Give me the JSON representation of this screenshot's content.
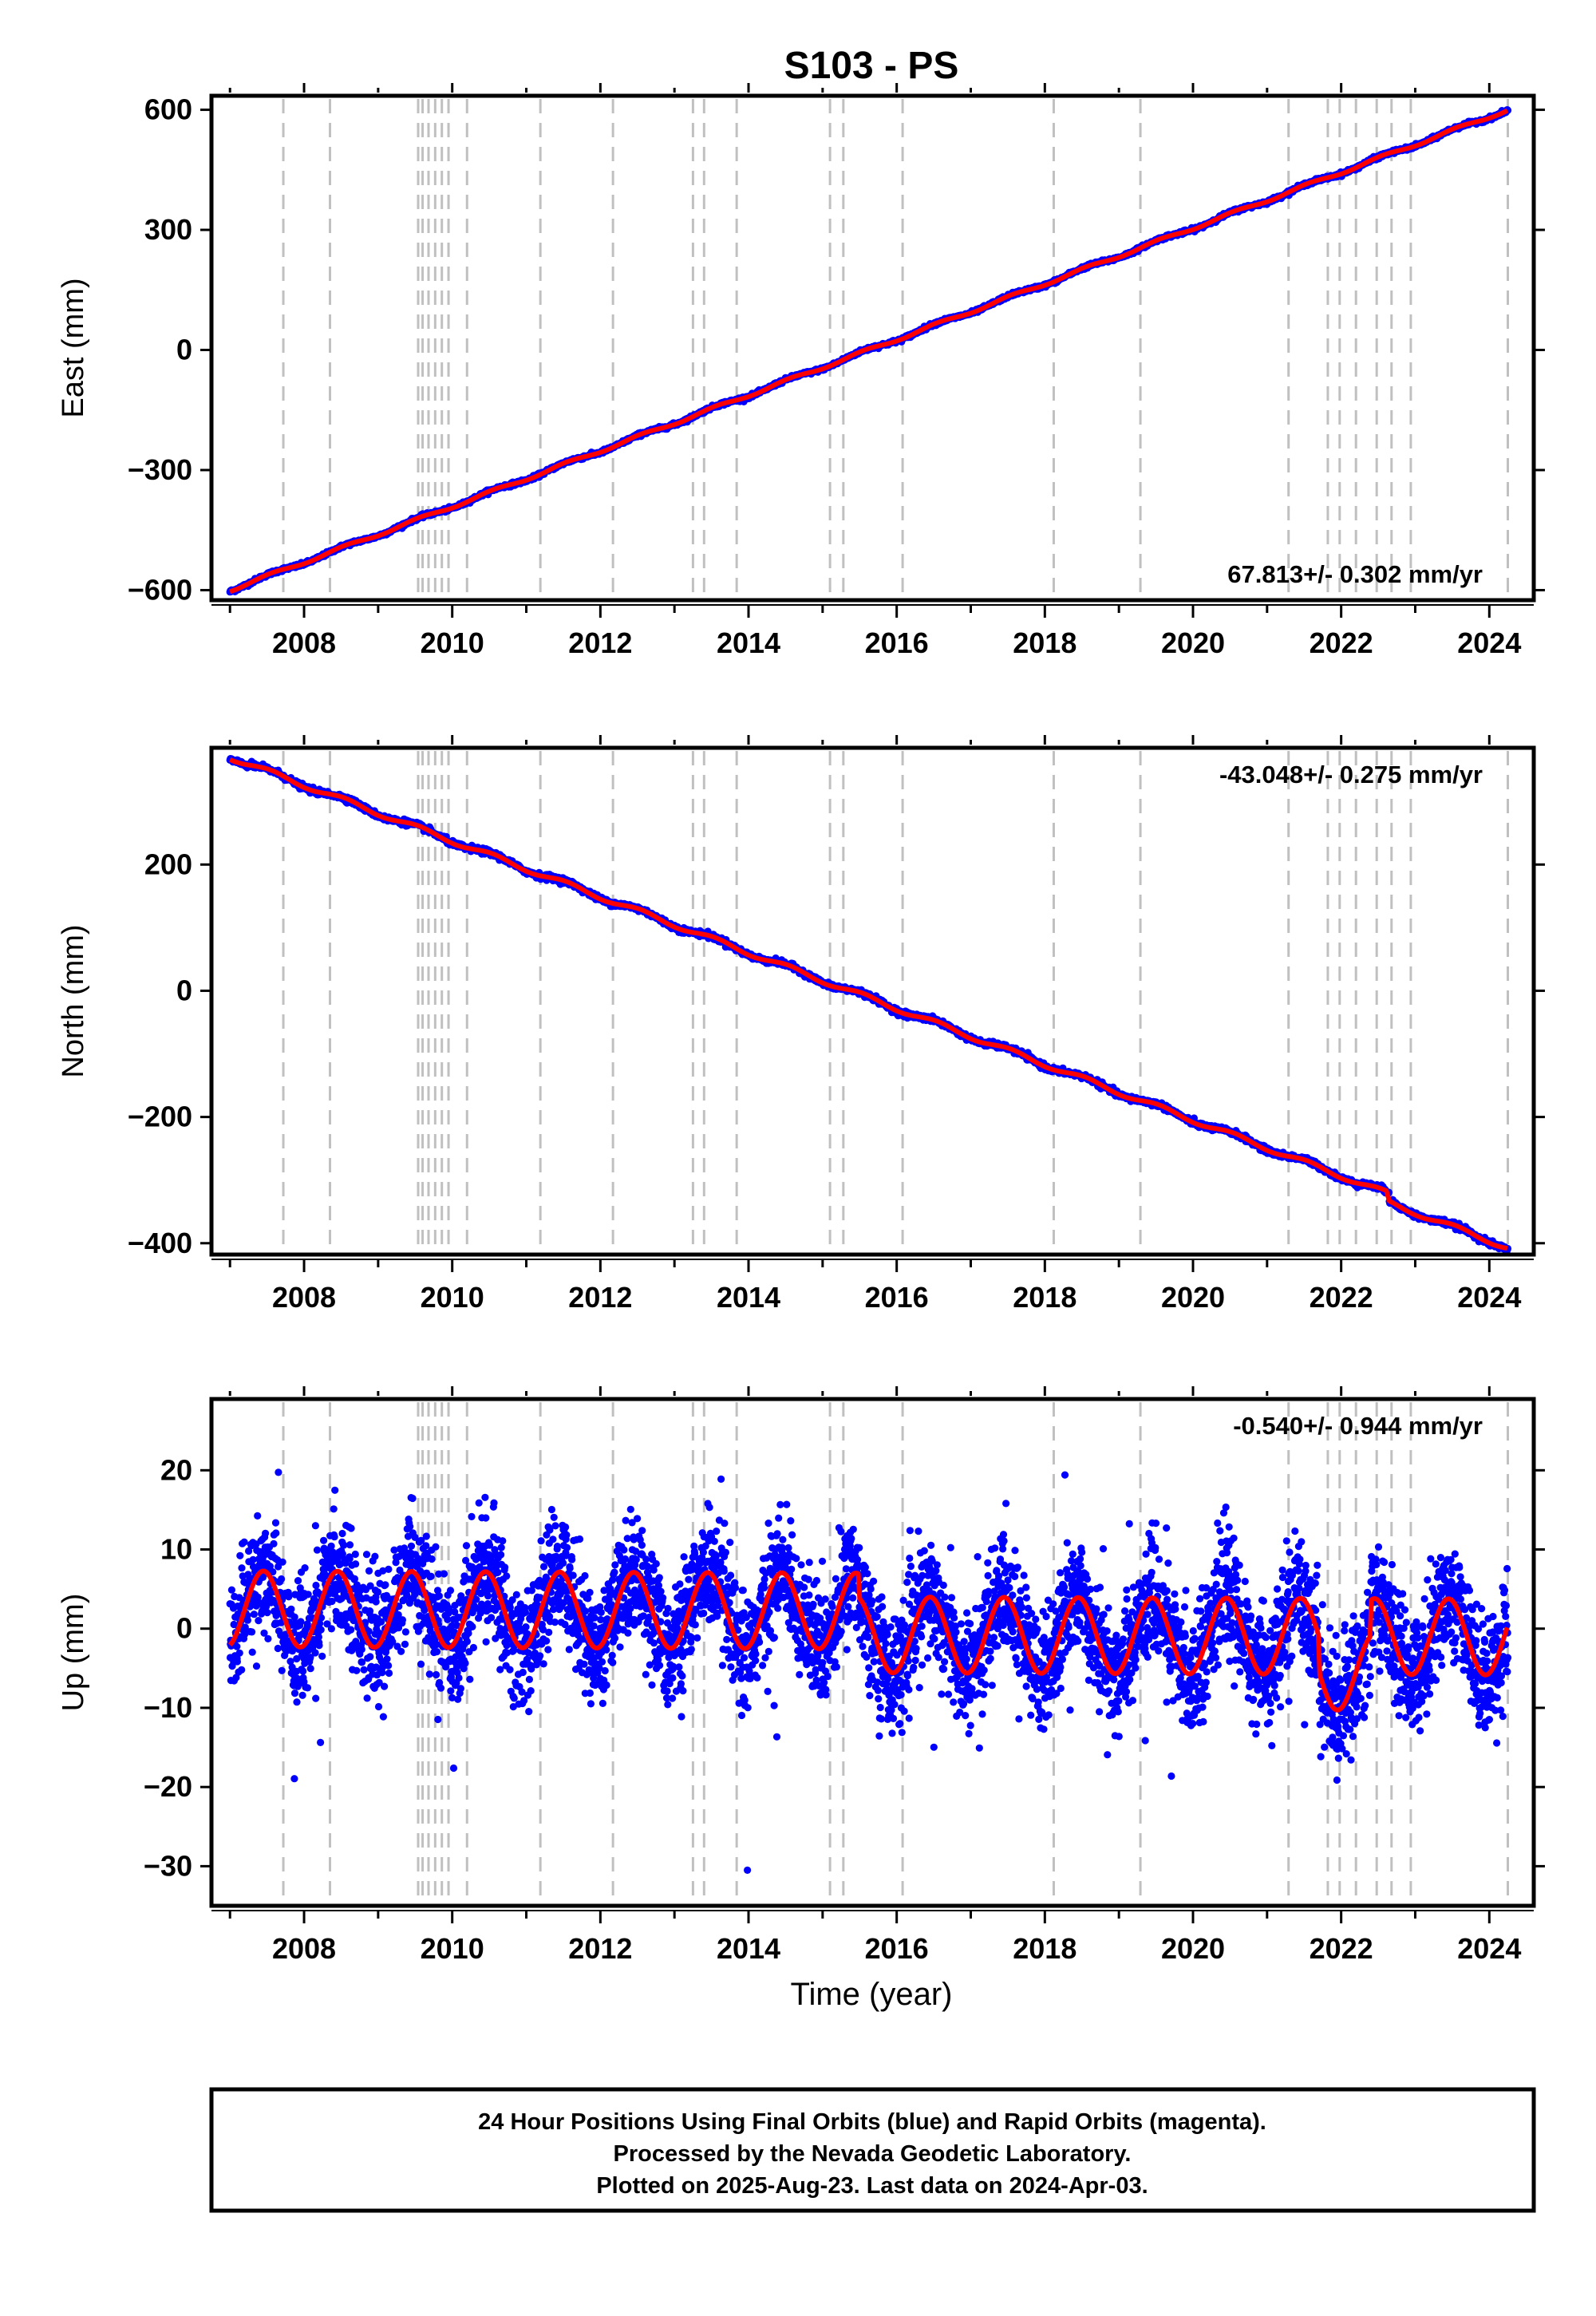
{
  "chart_data": {
    "title": "S103 - PS",
    "x_axis": {
      "label": "Time (year)",
      "range": [
        2006.75,
        2024.6
      ],
      "ticks": [
        2008,
        2010,
        2012,
        2014,
        2016,
        2018,
        2020,
        2022,
        2024
      ],
      "tick_labels": [
        "2008",
        "2010",
        "2012",
        "2014",
        "2016",
        "2018",
        "2020",
        "2022",
        "2024"
      ]
    },
    "event_lines_years": [
      2007.72,
      2008.35,
      2009.54,
      2009.6,
      2009.68,
      2009.77,
      2009.86,
      2009.95,
      2010.2,
      2011.19,
      2012.17,
      2013.25,
      2013.4,
      2013.84,
      2015.1,
      2015.28,
      2016.08,
      2018.12,
      2019.29,
      2021.29,
      2021.82,
      2021.98,
      2022.2,
      2022.48,
      2022.68,
      2022.94,
      2024.25
    ],
    "data_start": 2007.0,
    "data_end": 2024.25,
    "panels": [
      {
        "id": "east",
        "type": "scatter",
        "ylabel": "East (mm)",
        "ylim": [
          -625,
          635
        ],
        "yticks": [
          -600,
          -300,
          0,
          300,
          600
        ],
        "ytick_labels": [
          "−600",
          "−300",
          "0",
          "300",
          "600"
        ],
        "rate_text": "67.813+/- 0.302 mm/yr",
        "rate_position": "bottom-right",
        "trend": {
          "start_value": -600,
          "end_value": 600
        }
      },
      {
        "id": "north",
        "type": "scatter",
        "ylabel": "North (mm)",
        "ylim": [
          -418,
          385
        ],
        "yticks": [
          -400,
          -200,
          0,
          200
        ],
        "ytick_labels": [
          "−400",
          "−200",
          "0",
          "200"
        ],
        "rate_text": "-43.048+/- 0.275 mm/yr",
        "rate_position": "top-right",
        "trend": {
          "start_value": 370,
          "end_value": -393
        }
      },
      {
        "id": "up",
        "type": "scatter",
        "ylabel": "Up (mm)",
        "ylim": [
          -35,
          29
        ],
        "yticks": [
          -30,
          -20,
          -10,
          0,
          10,
          20
        ],
        "ytick_labels": [
          "−30",
          "−20",
          "−10",
          "0",
          "10",
          "20"
        ],
        "rate_text": "-0.540+/- 0.944 mm/yr",
        "rate_position": "top-right",
        "seasonal_model": {
          "amplitude_mm": 4.8,
          "peak_month": "June"
        }
      }
    ],
    "series": [
      {
        "name": "Final Orbits",
        "color": "#0000ff",
        "style": "points"
      },
      {
        "name": "Rapid Orbits",
        "color": "#ff00ff",
        "style": "points"
      },
      {
        "name": "Model fit",
        "color": "#ff0000",
        "style": "line"
      }
    ],
    "colors": {
      "event_line": "#c0c0c0",
      "frame": "#000000"
    }
  },
  "footer": {
    "line1": "24 Hour Positions Using Final Orbits (blue) and Rapid Orbits (magenta).",
    "line2": "Processed by the Nevada Geodetic Laboratory.",
    "line3": "Plotted on 2025-Aug-23. Last data on 2024-Apr-03."
  }
}
